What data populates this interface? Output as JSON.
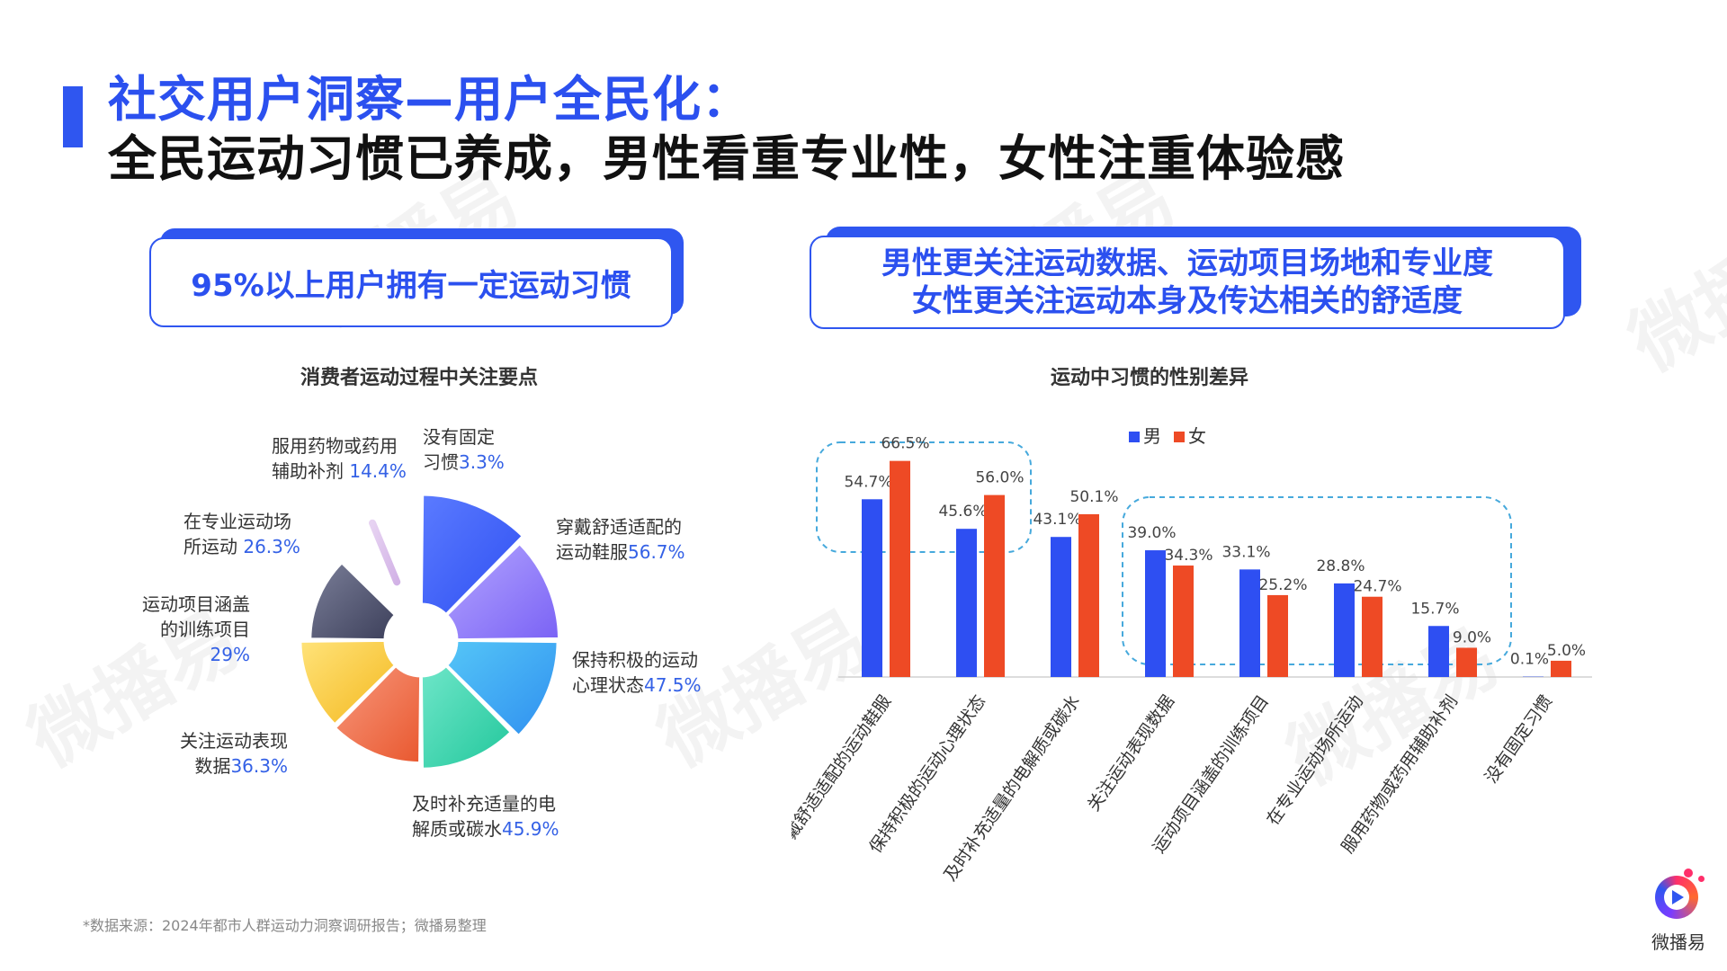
{
  "header": {
    "title_line1": "社交用户洞察—用户全民化：",
    "title_line2": "全民运动习惯已养成，男性看重专业性，女性注重体验感"
  },
  "watermark_text": "微播易",
  "callout_left": {
    "text": "95%以上用户拥有一定运动习惯"
  },
  "callout_right": {
    "line1": "男性更关注运动数据、运动项目场地和专业度",
    "line2": "女性更关注运动本身及传达相关的舒适度"
  },
  "colors": {
    "accent": "#2f56f0",
    "male": "#2e4ff2",
    "female": "#ee4a25"
  },
  "chart_data": [
    {
      "type": "pie",
      "title": "消费者运动过程中关注要点",
      "labels": [
        {
          "line1": "穿戴舒适适配的",
          "line2": "运动鞋服",
          "pct": "56.7%"
        },
        {
          "line1": "保持积极的运动",
          "line2": "心理状态",
          "pct": "47.5%"
        },
        {
          "line1": "及时补充适量的电",
          "line2": "解质或碳水",
          "pct": "45.9%"
        },
        {
          "line1": "关注运动表现",
          "line2": "数据",
          "pct": "36.3%"
        },
        {
          "line1": "运动项目涵盖",
          "line2": "的训练项目",
          "pct": "29%"
        },
        {
          "line1": "在专业运动场",
          "line2": "所运动",
          "pct": "26.3%"
        },
        {
          "line1": "服用药物或药用",
          "line2": "辅助补剂",
          "pct": "14.4%"
        },
        {
          "line1": "没有固定",
          "line2": "习惯",
          "pct": "3.3%"
        }
      ],
      "values": [
        56.7,
        47.5,
        45.9,
        36.3,
        29,
        26.3,
        14.4,
        3.3
      ]
    },
    {
      "type": "bar",
      "title": "运动中习惯的性别差异",
      "categories": [
        "穿戴舒适适配的运动鞋服",
        "保持积极的运动心理状态",
        "及时补充适量的电解质或碳水",
        "关注运动表现数据",
        "运动项目涵盖的训练项目",
        "在专业运动场所运动",
        "服用药物或药用辅助补剂",
        "没有固定习惯"
      ],
      "series": [
        {
          "name": "男",
          "values": [
            54.7,
            45.6,
            43.1,
            39.0,
            33.1,
            28.8,
            15.7,
            0.1
          ],
          "labels": [
            "54.7%",
            "45.6%",
            "43.1%",
            "39.0%",
            "33.1%",
            "28.8%",
            "15.7%",
            "0.1%"
          ]
        },
        {
          "name": "女",
          "values": [
            66.5,
            56.0,
            50.1,
            34.3,
            25.2,
            24.7,
            9.0,
            5.0
          ],
          "labels": [
            "66.5%",
            "56.0%",
            "50.1%",
            "34.3%",
            "25.2%",
            "24.7%",
            "9.0%",
            "5.0%"
          ]
        }
      ],
      "legend": "top-center",
      "ylim": [
        0,
        70
      ]
    }
  ],
  "source": "*数据来源：2024年都市人群运动力洞察调研报告；微播易整理",
  "logo": {
    "text": "微播易"
  }
}
